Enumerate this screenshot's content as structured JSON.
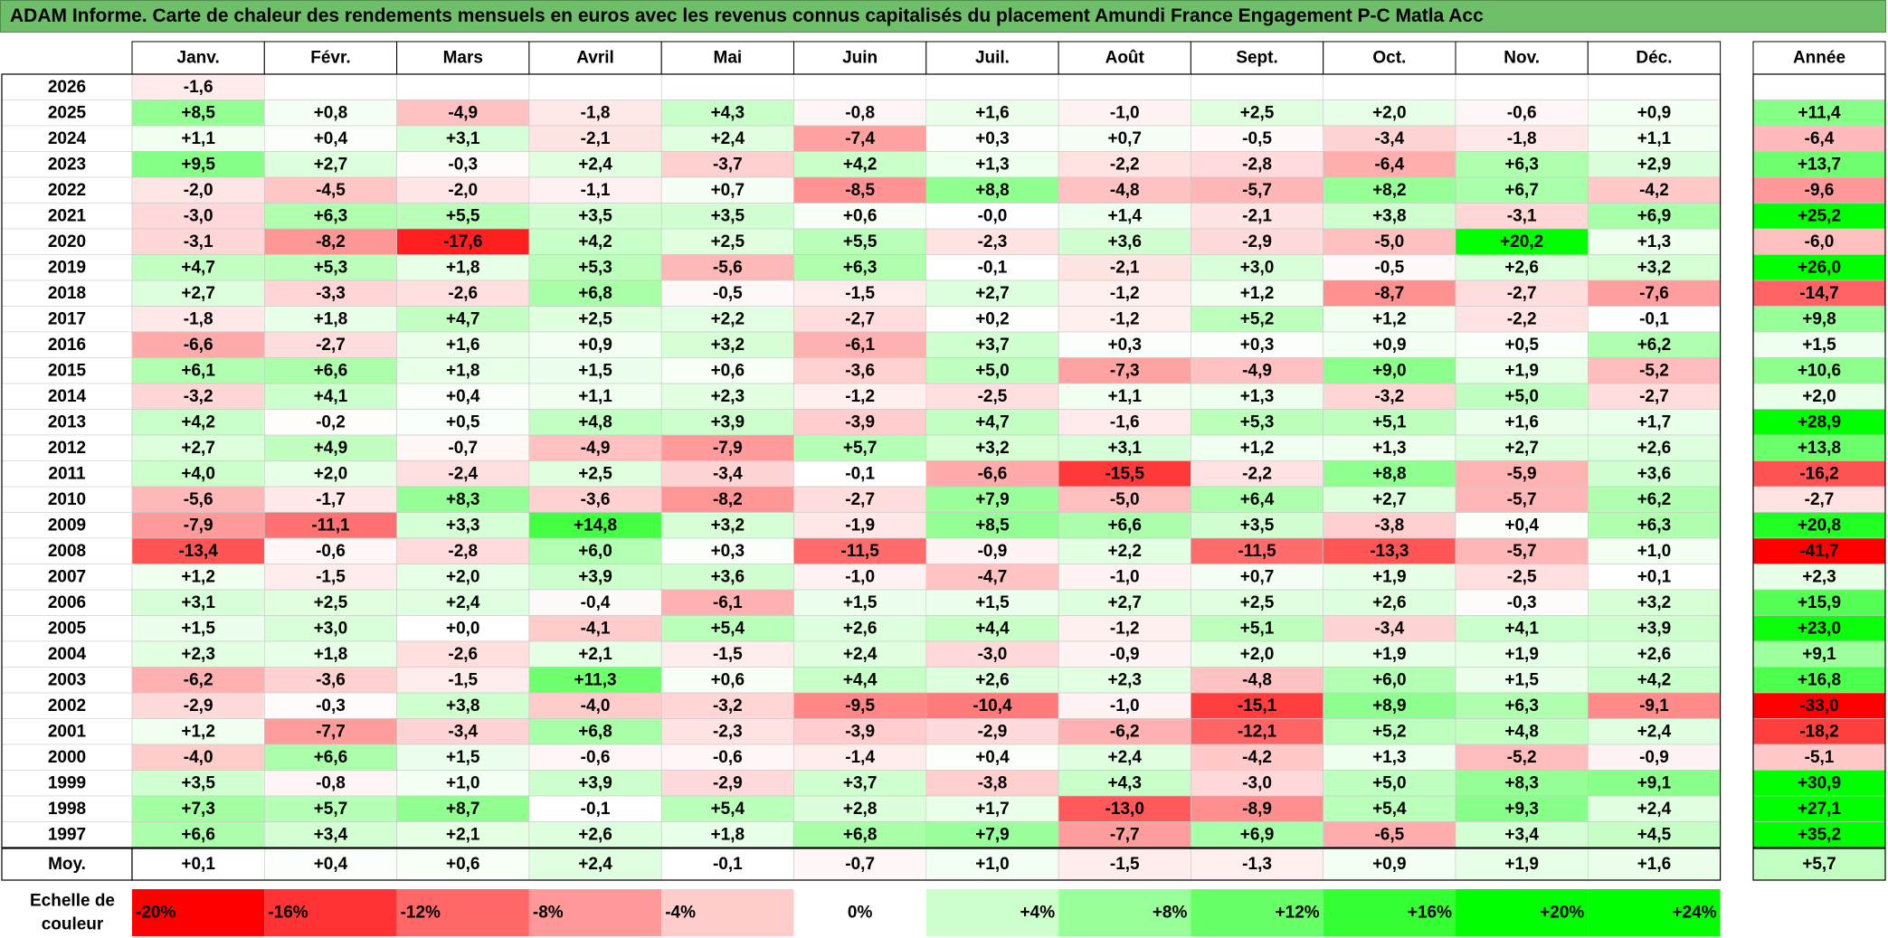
{
  "title": "ADAM Informe. Carte de chaleur des rendements mensuels en euros avec les revenus connus capitalisés du placement Amundi France Engagement P-C Matla Acc",
  "chart_data": {
    "type": "heatmap",
    "months": [
      "Janv.",
      "Févr.",
      "Mars",
      "Avril",
      "Mai",
      "Juin",
      "Juil.",
      "Août",
      "Sept.",
      "Oct.",
      "Nov.",
      "Déc."
    ],
    "year_header": "Année",
    "rows": [
      {
        "year": "2026",
        "months": [
          "-1,6",
          "",
          "",
          "",
          "",
          "",
          "",
          "",
          "",
          "",
          "",
          ""
        ],
        "annual": ""
      },
      {
        "year": "2025",
        "months": [
          "+8,5",
          "+0,8",
          "-4,9",
          "-1,8",
          "+4,3",
          "-0,8",
          "+1,6",
          "-1,0",
          "+2,5",
          "+2,0",
          "-0,6",
          "+0,9"
        ],
        "annual": "+11,4"
      },
      {
        "year": "2024",
        "months": [
          "+1,1",
          "+0,4",
          "+3,1",
          "-2,1",
          "+2,4",
          "-7,4",
          "+0,3",
          "+0,7",
          "-0,5",
          "-3,4",
          "-1,8",
          "+1,1"
        ],
        "annual": "-6,4"
      },
      {
        "year": "2023",
        "months": [
          "+9,5",
          "+2,7",
          "-0,3",
          "+2,4",
          "-3,7",
          "+4,2",
          "+1,3",
          "-2,2",
          "-2,8",
          "-6,4",
          "+6,3",
          "+2,9"
        ],
        "annual": "+13,7"
      },
      {
        "year": "2022",
        "months": [
          "-2,0",
          "-4,5",
          "-2,0",
          "-1,1",
          "+0,7",
          "-8,5",
          "+8,8",
          "-4,8",
          "-5,7",
          "+8,2",
          "+6,7",
          "-4,2"
        ],
        "annual": "-9,6"
      },
      {
        "year": "2021",
        "months": [
          "-3,0",
          "+6,3",
          "+5,5",
          "+3,5",
          "+3,5",
          "+0,6",
          "-0,0",
          "+1,4",
          "-2,1",
          "+3,8",
          "-3,1",
          "+6,9"
        ],
        "annual": "+25,2"
      },
      {
        "year": "2020",
        "months": [
          "-3,1",
          "-8,2",
          "-17,6",
          "+4,2",
          "+2,5",
          "+5,5",
          "-2,3",
          "+3,6",
          "-2,9",
          "-5,0",
          "+20,2",
          "+1,3"
        ],
        "annual": "-6,0"
      },
      {
        "year": "2019",
        "months": [
          "+4,7",
          "+5,3",
          "+1,8",
          "+5,3",
          "-5,6",
          "+6,3",
          "-0,1",
          "-2,1",
          "+3,0",
          "-0,5",
          "+2,6",
          "+3,2"
        ],
        "annual": "+26,0"
      },
      {
        "year": "2018",
        "months": [
          "+2,7",
          "-3,3",
          "-2,6",
          "+6,8",
          "-0,5",
          "-1,5",
          "+2,7",
          "-1,2",
          "+1,2",
          "-8,7",
          "-2,7",
          "-7,6"
        ],
        "annual": "-14,7"
      },
      {
        "year": "2017",
        "months": [
          "-1,8",
          "+1,8",
          "+4,7",
          "+2,5",
          "+2,2",
          "-2,7",
          "+0,2",
          "-1,2",
          "+5,2",
          "+1,2",
          "-2,2",
          "-0,1"
        ],
        "annual": "+9,8"
      },
      {
        "year": "2016",
        "months": [
          "-6,6",
          "-2,7",
          "+1,6",
          "+0,9",
          "+3,2",
          "-6,1",
          "+3,7",
          "+0,3",
          "+0,3",
          "+0,9",
          "+0,5",
          "+6,2"
        ],
        "annual": "+1,5"
      },
      {
        "year": "2015",
        "months": [
          "+6,1",
          "+6,6",
          "+1,8",
          "+1,5",
          "+0,6",
          "-3,6",
          "+5,0",
          "-7,3",
          "-4,9",
          "+9,0",
          "+1,9",
          "-5,2"
        ],
        "annual": "+10,6"
      },
      {
        "year": "2014",
        "months": [
          "-3,2",
          "+4,1",
          "+0,4",
          "+1,1",
          "+2,3",
          "-1,2",
          "-2,5",
          "+1,1",
          "+1,3",
          "-3,2",
          "+5,0",
          "-2,7"
        ],
        "annual": "+2,0"
      },
      {
        "year": "2013",
        "months": [
          "+4,2",
          "-0,2",
          "+0,5",
          "+4,8",
          "+3,9",
          "-3,9",
          "+4,7",
          "-1,6",
          "+5,3",
          "+5,1",
          "+1,6",
          "+1,7"
        ],
        "annual": "+28,9"
      },
      {
        "year": "2012",
        "months": [
          "+2,7",
          "+4,9",
          "-0,7",
          "-4,9",
          "-7,9",
          "+5,7",
          "+3,2",
          "+3,1",
          "+1,2",
          "+1,3",
          "+2,7",
          "+2,6"
        ],
        "annual": "+13,8"
      },
      {
        "year": "2011",
        "months": [
          "+4,0",
          "+2,0",
          "-2,4",
          "+2,5",
          "-3,4",
          "-0,1",
          "-6,6",
          "-15,5",
          "-2,2",
          "+8,8",
          "-5,9",
          "+3,6"
        ],
        "annual": "-16,2"
      },
      {
        "year": "2010",
        "months": [
          "-5,6",
          "-1,7",
          "+8,3",
          "-3,6",
          "-8,2",
          "-2,7",
          "+7,9",
          "-5,0",
          "+6,4",
          "+2,7",
          "-5,7",
          "+6,2"
        ],
        "annual": "-2,7"
      },
      {
        "year": "2009",
        "months": [
          "-7,9",
          "-11,1",
          "+3,3",
          "+14,8",
          "+3,2",
          "-1,9",
          "+8,5",
          "+6,6",
          "+3,5",
          "-3,8",
          "+0,4",
          "+6,3"
        ],
        "annual": "+20,8"
      },
      {
        "year": "2008",
        "months": [
          "-13,4",
          "-0,6",
          "-2,8",
          "+6,0",
          "+0,3",
          "-11,5",
          "-0,9",
          "+2,2",
          "-11,5",
          "-13,3",
          "-5,7",
          "+1,0"
        ],
        "annual": "-41,7"
      },
      {
        "year": "2007",
        "months": [
          "+1,2",
          "-1,5",
          "+2,0",
          "+3,9",
          "+3,6",
          "-1,0",
          "-4,7",
          "-1,0",
          "+0,7",
          "+1,9",
          "-2,5",
          "+0,1"
        ],
        "annual": "+2,3"
      },
      {
        "year": "2006",
        "months": [
          "+3,1",
          "+2,5",
          "+2,4",
          "-0,4",
          "-6,1",
          "+1,5",
          "+1,5",
          "+2,7",
          "+2,5",
          "+2,6",
          "-0,3",
          "+3,2"
        ],
        "annual": "+15,9"
      },
      {
        "year": "2005",
        "months": [
          "+1,5",
          "+3,0",
          "+0,0",
          "-4,1",
          "+5,4",
          "+2,6",
          "+4,4",
          "-1,2",
          "+5,1",
          "-3,4",
          "+4,1",
          "+3,9"
        ],
        "annual": "+23,0"
      },
      {
        "year": "2004",
        "months": [
          "+2,3",
          "+1,8",
          "-2,6",
          "+2,1",
          "-1,5",
          "+2,4",
          "-3,0",
          "-0,9",
          "+2,0",
          "+1,9",
          "+1,9",
          "+2,6"
        ],
        "annual": "+9,1"
      },
      {
        "year": "2003",
        "months": [
          "-6,2",
          "-3,6",
          "-1,5",
          "+11,3",
          "+0,6",
          "+4,4",
          "+2,6",
          "+2,3",
          "-4,8",
          "+6,0",
          "+1,5",
          "+4,2"
        ],
        "annual": "+16,8"
      },
      {
        "year": "2002",
        "months": [
          "-2,9",
          "-0,3",
          "+3,8",
          "-4,0",
          "-3,2",
          "-9,5",
          "-10,4",
          "-1,0",
          "-15,1",
          "+8,9",
          "+6,3",
          "-9,1"
        ],
        "annual": "-33,0"
      },
      {
        "year": "2001",
        "months": [
          "+1,2",
          "-7,7",
          "-3,4",
          "+6,8",
          "-2,3",
          "-3,9",
          "-2,9",
          "-6,2",
          "-12,1",
          "+5,2",
          "+4,8",
          "+2,4"
        ],
        "annual": "-18,2"
      },
      {
        "year": "2000",
        "months": [
          "-4,0",
          "+6,6",
          "+1,5",
          "-0,6",
          "-0,6",
          "-1,4",
          "+0,4",
          "+2,4",
          "-4,2",
          "+1,3",
          "-5,2",
          "-0,9"
        ],
        "annual": "-5,1"
      },
      {
        "year": "1999",
        "months": [
          "+3,5",
          "-0,8",
          "+1,0",
          "+3,9",
          "-2,9",
          "+3,7",
          "-3,8",
          "+4,3",
          "-3,0",
          "+5,0",
          "+8,3",
          "+9,1"
        ],
        "annual": "+30,9"
      },
      {
        "year": "1998",
        "months": [
          "+7,3",
          "+5,7",
          "+8,7",
          "-0,1",
          "+5,4",
          "+2,8",
          "+1,7",
          "-13,0",
          "-8,9",
          "+5,4",
          "+9,3",
          "+2,4"
        ],
        "annual": "+27,1"
      },
      {
        "year": "1997",
        "months": [
          "+6,6",
          "+3,4",
          "+2,1",
          "+2,6",
          "+1,8",
          "+6,8",
          "+7,9",
          "-7,7",
          "+6,9",
          "-6,5",
          "+3,4",
          "+4,5"
        ],
        "annual": "+35,2"
      }
    ],
    "average_row": {
      "label": "Moy.",
      "months": [
        "+0,1",
        "+0,4",
        "+0,6",
        "+2,4",
        "-0,1",
        "-0,7",
        "+1,0",
        "-1,5",
        "-1,3",
        "+0,9",
        "+1,9",
        "+1,6"
      ],
      "annual": "+5,7"
    },
    "scale": {
      "label_line1": "Echelle de",
      "label_line2": "couleur",
      "labels": [
        "-20%",
        "-16%",
        "-12%",
        "-8%",
        "-4%",
        "0%",
        "+4%",
        "+8%",
        "+12%",
        "+16%",
        "+20%",
        "+24%"
      ],
      "values": [
        -20,
        -16,
        -12,
        -8,
        -4,
        0,
        4,
        8,
        12,
        16,
        20,
        24
      ]
    },
    "colors": {
      "negative_max": "#ff0000",
      "positive_max": "#00ff00",
      "neutral": "#ffffff",
      "title_background": "#6fbf6a"
    }
  }
}
